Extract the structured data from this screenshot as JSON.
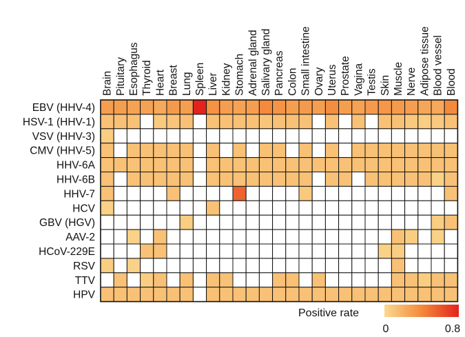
{
  "chart_data": {
    "type": "heatmap",
    "columns": [
      "Brain",
      "Pituitary",
      "Esophagus",
      "Thyroid",
      "Heart",
      "Breast",
      "Lung",
      "Spleen",
      "Liver",
      "Kidney",
      "Stomach",
      "Adrenal gland",
      "Salivary gland",
      "Pancreas",
      "Colon",
      "Small intestine",
      "Ovary",
      "Uterus",
      "Prostate",
      "Vagina",
      "Testis",
      "Skin",
      "Muscle",
      "Nerve",
      "Adipose tissue",
      "Blood vessel",
      "Blood"
    ],
    "rows": [
      "EBV (HHV-4)",
      "HSV-1 (HHV-1)",
      "VSV (HHV-3)",
      "CMV (HHV-5)",
      "HHV-6A",
      "HHV-6B",
      "HHV-7",
      "HCV",
      "GBV (HGV)",
      "AAV-2",
      "HCoV-229E",
      "RSV",
      "TTV",
      "HPV"
    ],
    "values": [
      [
        0.3,
        0.3,
        0.28,
        0.28,
        0.25,
        0.32,
        0.3,
        0.8,
        0.36,
        0.3,
        0.28,
        0.3,
        0.4,
        0.35,
        0.3,
        0.32,
        0.3,
        0.38,
        0.3,
        0.28,
        0.32,
        0.34,
        0.32,
        0.3,
        0.26,
        0.25,
        0.4
      ],
      [
        0.12,
        0.12,
        0.12,
        0.0,
        0.08,
        0.1,
        0.12,
        0.0,
        0.12,
        0.12,
        0.12,
        0.12,
        0.1,
        0.12,
        0.12,
        0.12,
        0.0,
        0.12,
        0.0,
        0.12,
        0.0,
        0.12,
        0.12,
        0.08,
        0.06,
        0.08,
        0.12
      ],
      [
        0.06,
        0.0,
        0.0,
        0.0,
        0.0,
        0.0,
        0.0,
        0.0,
        0.0,
        0.0,
        0.0,
        0.0,
        0.0,
        0.0,
        0.0,
        0.0,
        0.0,
        0.0,
        0.0,
        0.0,
        0.0,
        0.0,
        0.0,
        0.0,
        0.0,
        0.0,
        0.0
      ],
      [
        0.12,
        0.0,
        0.12,
        0.12,
        0.12,
        0.12,
        0.12,
        0.0,
        0.12,
        0.0,
        0.12,
        0.0,
        0.12,
        0.12,
        0.0,
        0.12,
        0.0,
        0.12,
        0.0,
        0.12,
        0.12,
        0.12,
        0.12,
        0.12,
        0.12,
        0.12,
        0.12
      ],
      [
        0.12,
        0.12,
        0.12,
        0.12,
        0.12,
        0.12,
        0.12,
        0.0,
        0.12,
        0.12,
        0.12,
        0.12,
        0.12,
        0.12,
        0.12,
        0.12,
        0.12,
        0.12,
        0.12,
        0.12,
        0.12,
        0.12,
        0.12,
        0.12,
        0.12,
        0.12,
        0.12
      ],
      [
        0.12,
        0.0,
        0.12,
        0.12,
        0.12,
        0.12,
        0.12,
        0.0,
        0.12,
        0.12,
        0.12,
        0.12,
        0.12,
        0.12,
        0.12,
        0.12,
        0.0,
        0.12,
        0.12,
        0.0,
        0.12,
        0.12,
        0.12,
        0.12,
        0.12,
        0.04,
        0.12
      ],
      [
        0.12,
        0.0,
        0.0,
        0.0,
        0.0,
        0.12,
        0.0,
        0.0,
        0.0,
        0.0,
        0.55,
        0.0,
        0.0,
        0.0,
        0.0,
        0.08,
        0.0,
        0.0,
        0.0,
        0.0,
        0.0,
        0.0,
        0.0,
        0.0,
        0.0,
        0.0,
        0.12
      ],
      [
        0.04,
        0.0,
        0.0,
        0.0,
        0.0,
        0.0,
        0.0,
        0.0,
        0.12,
        0.0,
        0.0,
        0.0,
        0.0,
        0.0,
        0.0,
        0.0,
        0.0,
        0.0,
        0.0,
        0.0,
        0.0,
        0.0,
        0.0,
        0.0,
        0.0,
        0.0,
        0.0
      ],
      [
        0.0,
        0.0,
        0.0,
        0.0,
        0.0,
        0.0,
        0.06,
        0.0,
        0.0,
        0.0,
        0.0,
        0.0,
        0.0,
        0.0,
        0.0,
        0.0,
        0.0,
        0.0,
        0.0,
        0.0,
        0.0,
        0.0,
        0.0,
        0.0,
        0.0,
        0.06,
        0.12
      ],
      [
        0.0,
        0.0,
        0.04,
        0.0,
        0.12,
        0.0,
        0.0,
        0.0,
        0.0,
        0.0,
        0.0,
        0.0,
        0.0,
        0.0,
        0.0,
        0.0,
        0.0,
        0.0,
        0.0,
        0.0,
        0.0,
        0.0,
        0.12,
        0.06,
        0.0,
        0.04,
        0.0
      ],
      [
        0.0,
        0.0,
        0.0,
        0.12,
        0.12,
        0.0,
        0.0,
        0.0,
        0.0,
        0.0,
        0.0,
        0.0,
        0.0,
        0.0,
        0.0,
        0.0,
        0.0,
        0.0,
        0.0,
        0.0,
        0.0,
        0.04,
        0.06,
        0.0,
        0.0,
        0.0,
        0.0
      ],
      [
        0.06,
        0.0,
        0.04,
        0.0,
        0.0,
        0.0,
        0.0,
        0.0,
        0.0,
        0.0,
        0.0,
        0.0,
        0.0,
        0.0,
        0.0,
        0.0,
        0.0,
        0.0,
        0.0,
        0.0,
        0.0,
        0.0,
        0.12,
        0.0,
        0.0,
        0.0,
        0.0
      ],
      [
        0.0,
        0.12,
        0.0,
        0.06,
        0.12,
        0.0,
        0.12,
        0.0,
        0.12,
        0.12,
        0.0,
        0.0,
        0.0,
        0.12,
        0.12,
        0.0,
        0.12,
        0.0,
        0.0,
        0.0,
        0.0,
        0.0,
        0.12,
        0.12,
        0.06,
        0.12,
        0.12
      ],
      [
        0.12,
        0.12,
        0.12,
        0.12,
        0.12,
        0.12,
        0.12,
        0.0,
        0.12,
        0.12,
        0.12,
        0.12,
        0.12,
        0.12,
        0.12,
        0.12,
        0.12,
        0.12,
        0.12,
        0.12,
        0.12,
        0.12,
        0.12,
        0.12,
        0.12,
        0.12,
        0.12
      ]
    ],
    "colorbar": {
      "label": "Positive rate",
      "min": 0,
      "max": 0.8,
      "tick_labels": [
        "0",
        "0.8"
      ],
      "colors": [
        "#fad98f",
        "#f48a3b",
        "#e3231d"
      ]
    },
    "zero_color": "#ffffff"
  }
}
